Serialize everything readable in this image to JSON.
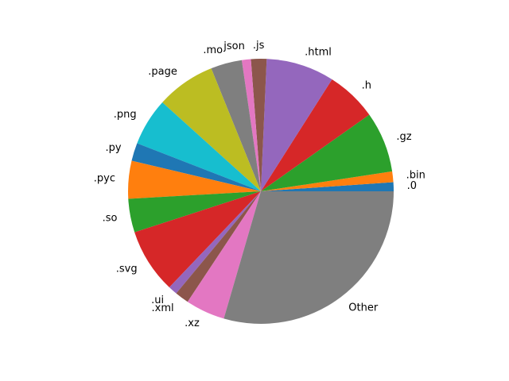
{
  "chart_data": {
    "type": "pie",
    "start_angle_deg": 0,
    "direction": "counterclockwise",
    "labels": [
      ".0",
      ".bin",
      ".gz",
      ".h",
      ".html",
      ".js",
      "json",
      ".mo",
      ".page",
      ".png",
      ".py",
      ".pyc",
      ".so",
      ".svg",
      ".ui",
      ".xml",
      ".xz",
      "Other"
    ],
    "values": [
      1.1,
      1.3,
      7.4,
      6.2,
      8.3,
      1.9,
      1.1,
      3.8,
      7.2,
      5.8,
      2.2,
      4.6,
      4.1,
      7.9,
      1.1,
      1.7,
      4.8,
      29.5
    ],
    "colors": [
      "#1f77b4",
      "#ff7f0e",
      "#2ca02c",
      "#d62728",
      "#9467bd",
      "#8c564b",
      "#e377c2",
      "#7f7f7f",
      "#bcbd22",
      "#17becf",
      "#1f77b4",
      "#ff7f0e",
      "#2ca02c",
      "#d62728",
      "#9467bd",
      "#8c564b",
      "#e377c2",
      "#7f7f7f"
    ]
  }
}
